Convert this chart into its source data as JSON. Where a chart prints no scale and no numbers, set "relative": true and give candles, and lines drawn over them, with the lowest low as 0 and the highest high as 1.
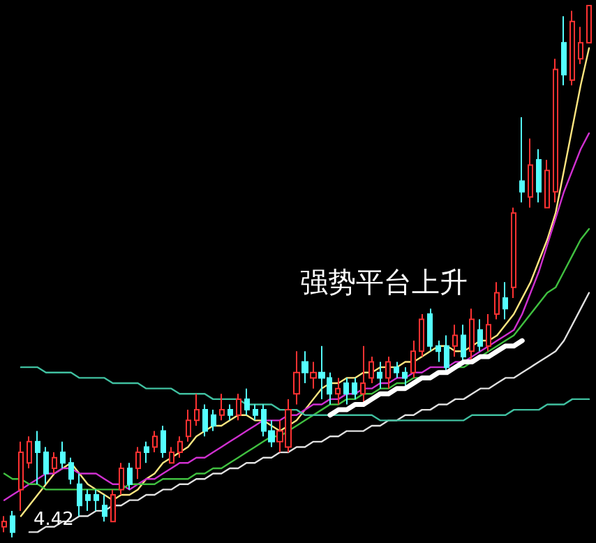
{
  "chart_data": {
    "type": "candlestick",
    "relative": true,
    "tick_labels": false,
    "line_style": "solid",
    "categories": [
      null,
      null,
      null,
      null,
      null,
      null,
      null,
      null,
      null,
      null,
      null,
      null,
      null,
      null,
      null,
      null,
      null,
      null,
      null,
      null,
      null,
      null,
      null,
      null,
      null,
      null,
      null,
      null,
      null,
      null,
      null,
      null,
      null,
      null,
      null,
      null,
      null,
      null,
      null,
      null,
      null,
      null,
      null,
      null,
      null,
      null,
      null,
      null,
      null,
      null,
      null,
      null,
      null,
      null,
      null,
      null,
      null,
      null,
      null,
      null,
      null,
      null,
      null,
      null,
      null,
      null,
      null,
      null,
      null,
      null,
      null
    ],
    "ohlc": [
      [
        0.02,
        0.04,
        0.01,
        0.03
      ],
      [
        0.04,
        0.05,
        0,
        0.01
      ],
      [
        0.09,
        0.18,
        0.05,
        0.16
      ],
      [
        0.14,
        0.19,
        0.13,
        0.18
      ],
      [
        0.18,
        0.2,
        0.1,
        0.16
      ],
      [
        0.16,
        0.17,
        0.1,
        0.12
      ],
      [
        0.13,
        0.16,
        0.12,
        0.15
      ],
      [
        0.16,
        0.18,
        0.13,
        0.14
      ],
      [
        0.14,
        0.15,
        0.1,
        0.11
      ],
      [
        0.1,
        0.12,
        0.04,
        0.06
      ],
      [
        0.08,
        0.09,
        0.05,
        0.07
      ],
      [
        0.08,
        0.09,
        0.05,
        0.07
      ],
      [
        0.06,
        0.08,
        0.03,
        0.04
      ],
      [
        0.03,
        0.09,
        0.03,
        0.08
      ],
      [
        0.09,
        0.14,
        0.08,
        0.13
      ],
      [
        0.13,
        0.14,
        0.09,
        0.1
      ],
      [
        0.13,
        0.17,
        0.11,
        0.16
      ],
      [
        0.17,
        0.18,
        0.14,
        0.16
      ],
      [
        0.17,
        0.2,
        0.16,
        0.19
      ],
      [
        0.2,
        0.21,
        0.15,
        0.16
      ],
      [
        0.14,
        0.17,
        0.14,
        0.16
      ],
      [
        0.16,
        0.19,
        0.15,
        0.18
      ],
      [
        0.19,
        0.24,
        0.18,
        0.22
      ],
      [
        0.22,
        0.27,
        0.21,
        0.24
      ],
      [
        0.24,
        0.25,
        0.19,
        0.2
      ],
      [
        0.23,
        0.24,
        0.2,
        0.21
      ],
      [
        0.23,
        0.27,
        0.22,
        0.24
      ],
      [
        0.24,
        0.25,
        0.22,
        0.23
      ],
      [
        0.23,
        0.27,
        0.22,
        0.26
      ],
      [
        0.26,
        0.28,
        0.23,
        0.24
      ],
      [
        0.24,
        0.25,
        0.22,
        0.23
      ],
      [
        0.24,
        0.25,
        0.19,
        0.2
      ],
      [
        0.2,
        0.22,
        0.17,
        0.18
      ],
      [
        0.18,
        0.22,
        0.16,
        0.2
      ],
      [
        0.17,
        0.26,
        0.16,
        0.24
      ],
      [
        0.27,
        0.35,
        0.25,
        0.31
      ],
      [
        0.33,
        0.35,
        0.29,
        0.31
      ],
      [
        0.3,
        0.33,
        0.28,
        0.31
      ],
      [
        0.31,
        0.36,
        0.26,
        0.3
      ],
      [
        0.3,
        0.31,
        0.25,
        0.27
      ],
      [
        0.27,
        0.3,
        0.25,
        0.28
      ],
      [
        0.29,
        0.3,
        0.25,
        0.27
      ],
      [
        0.29,
        0.3,
        0.26,
        0.27
      ],
      [
        0.27,
        0.36,
        0.25,
        0.29
      ],
      [
        0.3,
        0.34,
        0.29,
        0.33
      ],
      [
        0.31,
        0.33,
        0.28,
        0.3
      ],
      [
        0.3,
        0.34,
        0.28,
        0.33
      ],
      [
        0.32,
        0.33,
        0.3,
        0.31
      ],
      [
        0.31,
        0.32,
        0.28,
        0.3
      ],
      [
        0.31,
        0.37,
        0.3,
        0.35
      ],
      [
        0.35,
        0.42,
        0.34,
        0.41
      ],
      [
        0.42,
        0.43,
        0.35,
        0.36
      ],
      [
        0.36,
        0.37,
        0.33,
        0.35
      ],
      [
        0.36,
        0.38,
        0.31,
        0.32
      ],
      [
        0.36,
        0.4,
        0.34,
        0.38
      ],
      [
        0.38,
        0.4,
        0.33,
        0.34
      ],
      [
        0.35,
        0.43,
        0.33,
        0.41
      ],
      [
        0.39,
        0.41,
        0.35,
        0.36
      ],
      [
        0.36,
        0.42,
        0.35,
        0.4
      ],
      [
        0.42,
        0.48,
        0.41,
        0.46
      ],
      [
        0.45,
        0.48,
        0.41,
        0.43
      ],
      [
        0.47,
        0.62,
        0.45,
        0.61
      ],
      [
        0.67,
        0.79,
        0.63,
        0.65
      ],
      [
        0.64,
        0.75,
        0.62,
        0.7
      ],
      [
        0.71,
        0.73,
        0.63,
        0.65
      ],
      [
        0.62,
        0.71,
        0.62,
        0.69
      ],
      [
        0.65,
        0.9,
        0.63,
        0.88
      ],
      [
        0.93,
        0.98,
        0.85,
        0.87
      ],
      [
        0.86,
        0.99,
        0.85,
        0.97
      ],
      [
        0.9,
        0.96,
        0.89,
        0.93
      ],
      [
        0.93,
        1,
        0.93,
        1
      ]
    ],
    "series": [
      {
        "type": "line",
        "color": "#ffe680",
        "values": [
          null,
          null,
          0.04,
          0.06,
          0.08,
          0.1,
          0.12,
          0.13,
          0.14,
          0.12,
          0.1,
          0.09,
          0.08,
          0.07,
          0.08,
          0.08,
          0.09,
          0.11,
          0.12,
          0.14,
          0.15,
          0.16,
          0.17,
          0.19,
          0.2,
          0.21,
          0.21,
          0.22,
          0.23,
          0.23,
          0.22,
          0.22,
          0.21,
          0.2,
          0.21,
          0.22,
          0.24,
          0.26,
          0.28,
          0.29,
          0.29,
          0.3,
          0.3,
          0.31,
          0.31,
          0.32,
          0.32,
          0.32,
          0.33,
          0.33,
          0.34,
          0.35,
          0.36,
          0.36,
          0.35,
          0.35,
          0.36,
          0.37,
          0.37,
          0.38,
          0.4,
          0.42,
          0.45,
          0.48,
          0.52,
          0.56,
          0.61,
          0.69,
          0.77,
          0.85,
          0.92
        ]
      },
      {
        "type": "line",
        "color": "#d030d0",
        "values": [
          0.07,
          0.08,
          0.09,
          0.1,
          0.11,
          0.12,
          0.12,
          0.13,
          0.13,
          0.12,
          0.12,
          0.12,
          0.11,
          0.1,
          0.1,
          0.09,
          0.1,
          0.11,
          0.11,
          0.12,
          0.13,
          0.14,
          0.14,
          0.15,
          0.15,
          0.16,
          0.17,
          0.18,
          0.19,
          0.2,
          0.21,
          0.22,
          0.22,
          0.22,
          0.23,
          0.23,
          0.24,
          0.25,
          0.25,
          0.26,
          0.26,
          0.27,
          0.27,
          0.28,
          0.28,
          0.29,
          0.29,
          0.3,
          0.3,
          0.31,
          0.31,
          0.32,
          0.32,
          0.32,
          0.33,
          0.33,
          0.34,
          0.35,
          0.36,
          0.37,
          0.38,
          0.39,
          0.42,
          0.46,
          0.5,
          0.55,
          0.6,
          0.65,
          0.69,
          0.73,
          0.76
        ]
      },
      {
        "type": "line",
        "color": "#40c040",
        "values": [
          0.12,
          0.11,
          0.11,
          0.1,
          0.1,
          0.09,
          0.09,
          0.09,
          0.09,
          0.09,
          0.09,
          0.09,
          0.09,
          0.09,
          0.09,
          0.1,
          0.1,
          0.1,
          0.1,
          0.11,
          0.11,
          0.11,
          0.11,
          0.12,
          0.12,
          0.13,
          0.13,
          0.14,
          0.15,
          0.16,
          0.17,
          0.18,
          0.19,
          0.19,
          0.2,
          0.21,
          0.22,
          0.23,
          0.24,
          0.25,
          0.25,
          0.26,
          0.26,
          0.27,
          0.27,
          0.28,
          0.28,
          0.29,
          0.29,
          0.3,
          0.3,
          0.3,
          0.31,
          0.31,
          0.32,
          0.32,
          0.33,
          0.34,
          0.35,
          0.36,
          0.37,
          0.38,
          0.4,
          0.42,
          0.44,
          0.46,
          0.47,
          0.5,
          0.53,
          0.56,
          0.58
        ]
      },
      {
        "type": "line",
        "color": "#e0e0e0",
        "values": [
          null,
          null,
          null,
          0.01,
          0.01,
          0.02,
          0.02,
          0.03,
          0.03,
          0.04,
          0.04,
          0.05,
          0.05,
          0.06,
          0.06,
          0.07,
          0.07,
          0.08,
          0.08,
          0.09,
          0.09,
          0.1,
          0.1,
          0.11,
          0.11,
          0.12,
          0.12,
          0.13,
          0.13,
          0.14,
          0.14,
          0.15,
          0.15,
          0.16,
          0.16,
          0.17,
          0.17,
          0.18,
          0.18,
          0.19,
          0.19,
          0.2,
          0.2,
          0.2,
          0.21,
          0.21,
          0.22,
          0.22,
          0.23,
          0.23,
          0.24,
          0.24,
          0.25,
          0.25,
          0.26,
          0.26,
          0.27,
          0.28,
          0.28,
          0.29,
          0.3,
          0.3,
          0.31,
          0.32,
          0.33,
          0.34,
          0.35,
          0.37,
          0.4,
          0.43,
          0.46
        ]
      },
      {
        "type": "line",
        "color": "#40c0a0",
        "values": [
          null,
          null,
          0.32,
          0.32,
          0.32,
          0.31,
          0.31,
          0.31,
          0.31,
          0.3,
          0.3,
          0.3,
          0.3,
          0.29,
          0.29,
          0.29,
          0.29,
          0.28,
          0.28,
          0.28,
          0.28,
          0.27,
          0.27,
          0.27,
          0.27,
          0.26,
          0.26,
          0.26,
          0.26,
          0.25,
          0.25,
          0.25,
          0.25,
          0.24,
          0.24,
          0.24,
          0.23,
          0.23,
          0.23,
          0.23,
          0.23,
          0.23,
          0.23,
          0.23,
          0.23,
          0.22,
          0.22,
          0.22,
          0.22,
          0.22,
          0.22,
          0.22,
          0.22,
          0.22,
          0.22,
          0.22,
          0.23,
          0.23,
          0.23,
          0.23,
          0.23,
          0.24,
          0.24,
          0.24,
          0.24,
          0.25,
          0.25,
          0.25,
          0.26,
          0.26,
          0.26
        ]
      },
      {
        "type": "line",
        "color": "#ffffff",
        "values": [
          null,
          null,
          null,
          null,
          null,
          null,
          null,
          null,
          null,
          null,
          null,
          null,
          null,
          null,
          null,
          null,
          null,
          null,
          null,
          null,
          null,
          null,
          null,
          null,
          null,
          null,
          null,
          null,
          null,
          null,
          null,
          null,
          null,
          null,
          null,
          null,
          null,
          null,
          null,
          0.23,
          0.24,
          0.24,
          0.25,
          0.25,
          0.26,
          0.27,
          0.27,
          0.28,
          0.28,
          0.29,
          0.3,
          0.3,
          0.31,
          0.31,
          0.32,
          0.33,
          0.33,
          0.34,
          0.34,
          0.35,
          0.36,
          0.36,
          0.37,
          null,
          null,
          null,
          null,
          null,
          null,
          null,
          null
        ]
      }
    ],
    "annotations": [
      "强势平台上升",
      "4.42"
    ]
  }
}
